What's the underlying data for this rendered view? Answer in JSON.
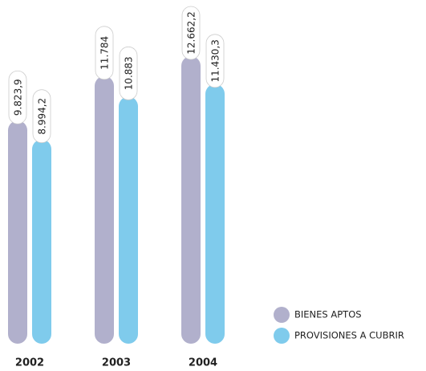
{
  "chart_data": {
    "type": "bar",
    "categories": [
      "2002",
      "2003",
      "2004"
    ],
    "series": [
      {
        "name": "BIENES APTOS",
        "color": "#b1b0cc",
        "values": [
          9823.9,
          11784,
          12662.2
        ],
        "value_labels": [
          "9.823,9",
          "11.784",
          "12.662,2"
        ]
      },
      {
        "name": "PROVISIONES A CUBRIR",
        "color": "#7fcbec",
        "values": [
          8994.2,
          10883,
          11430.3
        ],
        "value_labels": [
          "8.994,2",
          "10.883",
          "11.430,3"
        ]
      }
    ],
    "legend": "bottom-right"
  }
}
